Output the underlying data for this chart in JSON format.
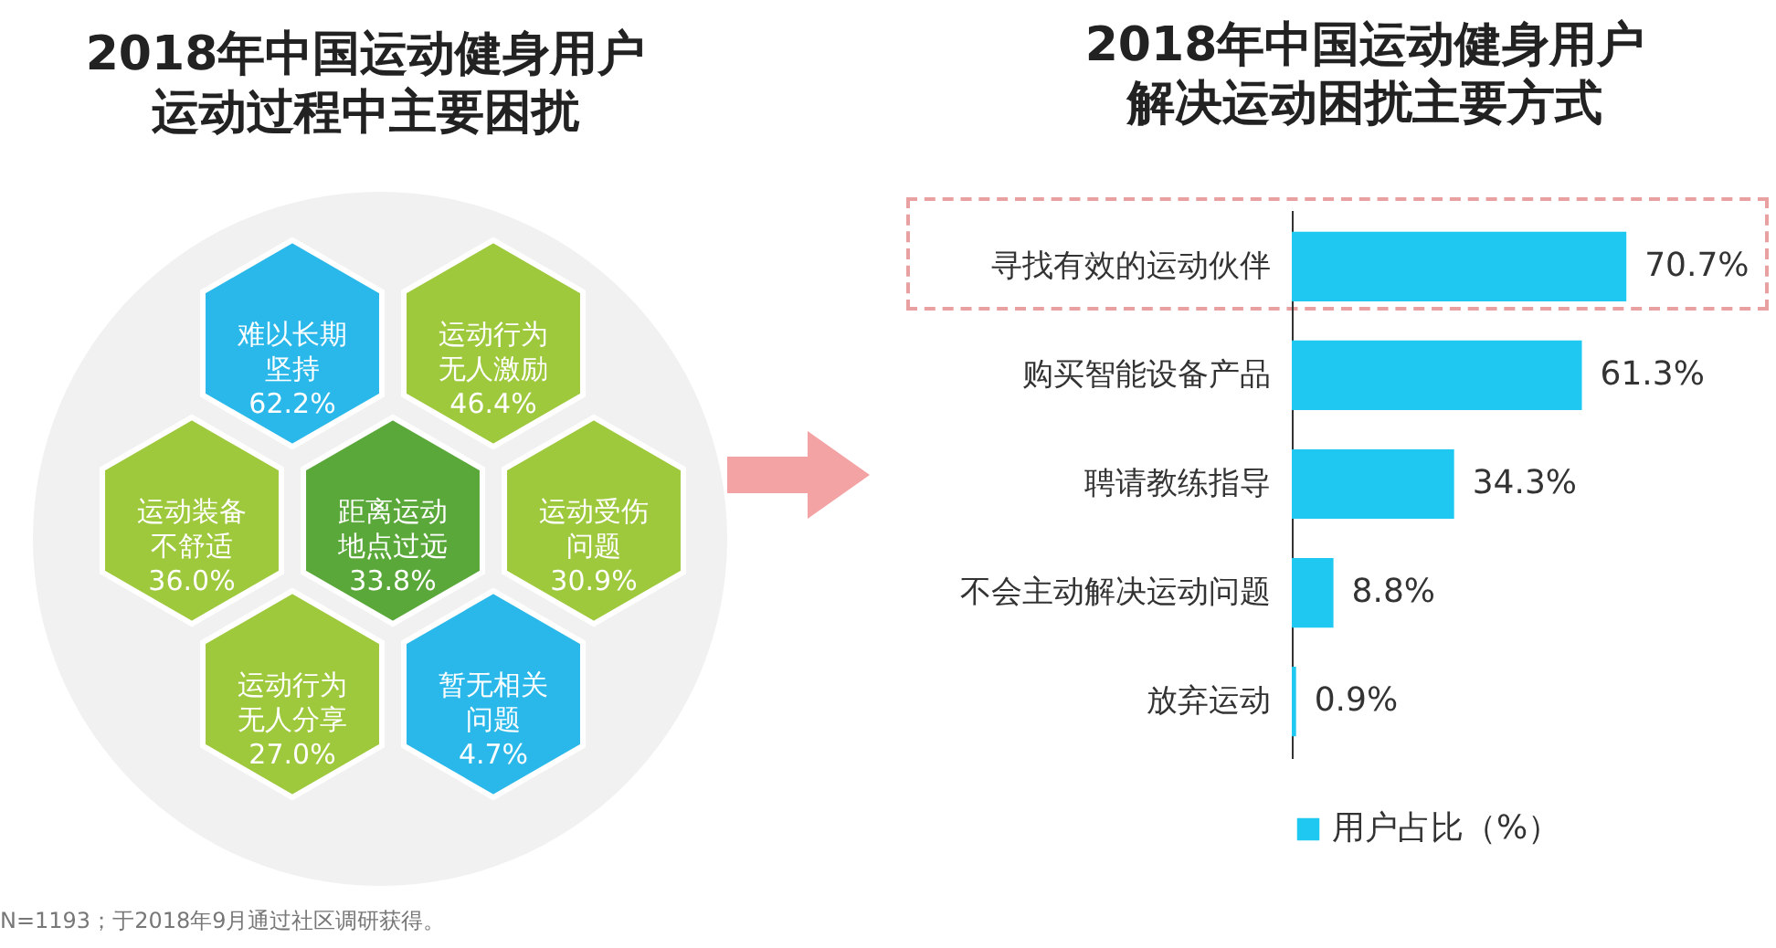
{
  "chart_data": [
    {
      "type": "other",
      "title": "2018年中国运动健身用户",
      "subtitle": "运动过程中主要困扰",
      "categories": [
        "难以长期坚持",
        "运动行为无人激励",
        "运动装备不舒适",
        "距离运动地点过远",
        "运动受伤问题",
        "运动行为无人分享",
        "暂无相关问题"
      ],
      "values": [
        62.2,
        46.4,
        36.0,
        33.8,
        30.9,
        27.0,
        4.7
      ],
      "value_labels": [
        "62.2%",
        "46.4%",
        "36.0%",
        "33.8%",
        "30.9%",
        "27.0%",
        "4.7%"
      ],
      "colors": [
        "#2ab8ea",
        "#9fc93c",
        "#9fc93c",
        "#5aa83a",
        "#9fc93c",
        "#9fc93c",
        "#2ab8ea"
      ],
      "annotations": [
        "N=1193；于2018年9月通过社区调研获得。"
      ]
    },
    {
      "type": "bar",
      "orientation": "horizontal",
      "title": "2018年中国运动健身用户",
      "subtitle": "解决运动困扰主要方式",
      "categories": [
        "寻找有效的运动伙伴",
        "购买智能设备产品",
        "聘请教练指导",
        "不会主动解决运动问题",
        "放弃运动"
      ],
      "series": [
        {
          "name": "用户占比（%）",
          "color": "#1ec8f0",
          "values": [
            70.7,
            61.3,
            34.3,
            8.8,
            0.9
          ],
          "value_labels": [
            "70.7%",
            "61.3%",
            "34.3%",
            "8.8%",
            "0.9%"
          ]
        }
      ],
      "legend": "bottom"
    }
  ]
}
